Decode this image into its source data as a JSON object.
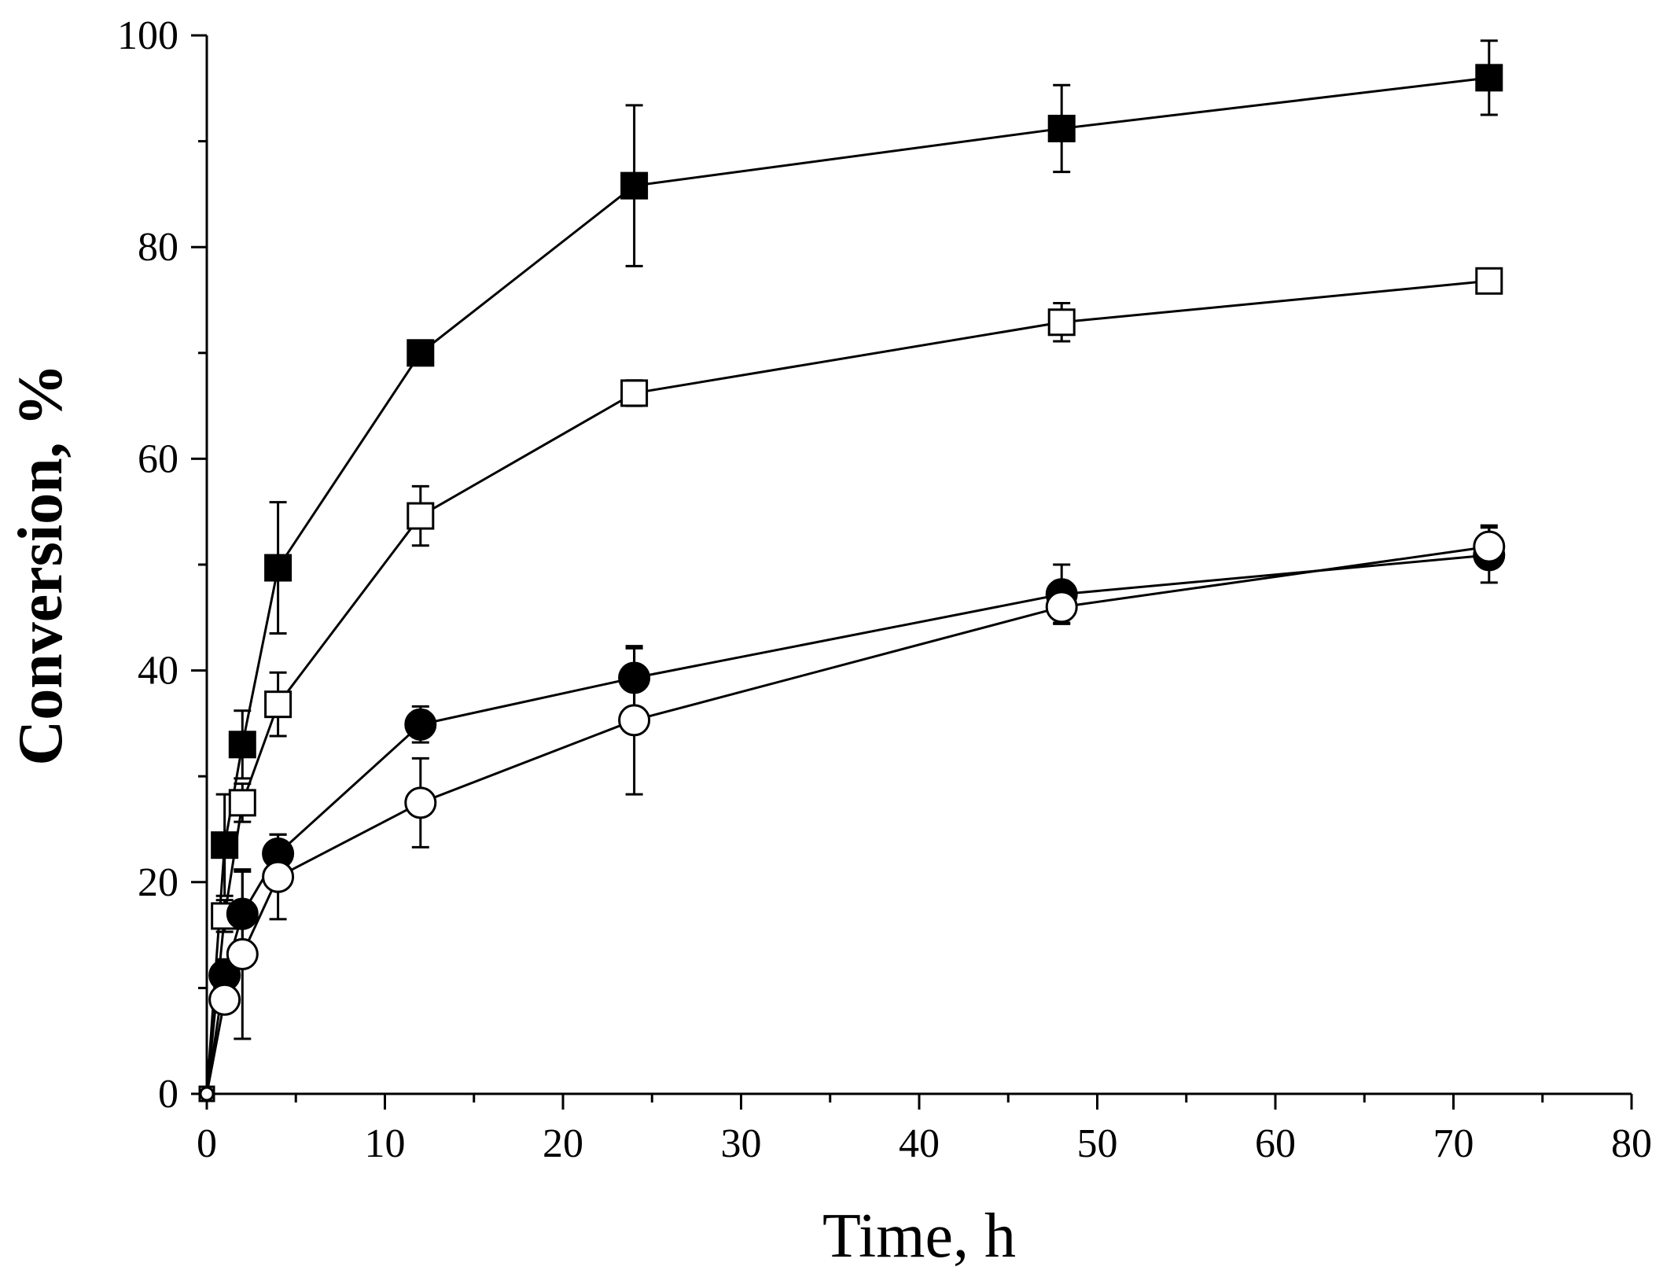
{
  "chart_data": {
    "type": "line",
    "title": "",
    "xlabel": "Time, h",
    "ylabel": "Conversion, %",
    "xlim": [
      0,
      80
    ],
    "ylim": [
      0,
      100
    ],
    "xticks": [
      0,
      10,
      20,
      30,
      40,
      50,
      60,
      70,
      80
    ],
    "yticks": [
      0,
      20,
      40,
      60,
      80,
      100
    ],
    "x_minor_step": 5,
    "y_minor_step": 10,
    "grid": false,
    "legend": "none",
    "series": [
      {
        "name": "filled-square",
        "marker": "square",
        "fill": "#000000",
        "x": [
          0,
          1,
          2,
          4,
          12,
          24,
          48,
          72
        ],
        "values": [
          0,
          23.5,
          33,
          49.7,
          70,
          85.8,
          91.2,
          96
        ],
        "errors": [
          0,
          4.8,
          3.2,
          6.2,
          1.0,
          7.6,
          4.1,
          3.5
        ]
      },
      {
        "name": "open-square",
        "marker": "square",
        "fill": "#ffffff",
        "x": [
          0,
          1,
          2,
          4,
          12,
          24,
          48,
          72
        ],
        "values": [
          0,
          16.8,
          27.5,
          36.8,
          54.6,
          66.2,
          72.9,
          76.8
        ],
        "errors": [
          0,
          1.5,
          1.8,
          3.0,
          2.8,
          1.2,
          1.8,
          0
        ]
      },
      {
        "name": "filled-circle",
        "marker": "circle",
        "fill": "#000000",
        "x": [
          0,
          1,
          2,
          4,
          12,
          24,
          48,
          72
        ],
        "values": [
          0,
          11.2,
          17.0,
          22.7,
          34.9,
          39.3,
          47.2,
          50.9
        ],
        "errors": [
          0,
          1.5,
          4.0,
          1.8,
          1.7,
          2.8,
          2.8,
          2.6
        ]
      },
      {
        "name": "open-circle",
        "marker": "circle",
        "fill": "#ffffff",
        "x": [
          0,
          1,
          2,
          4,
          12,
          24,
          48,
          72
        ],
        "values": [
          0,
          8.9,
          13.2,
          20.5,
          27.5,
          35.3,
          46.0,
          51.7
        ],
        "errors": [
          0,
          1.0,
          8.0,
          4.0,
          4.2,
          7.0,
          1.5,
          2.0
        ]
      }
    ]
  }
}
